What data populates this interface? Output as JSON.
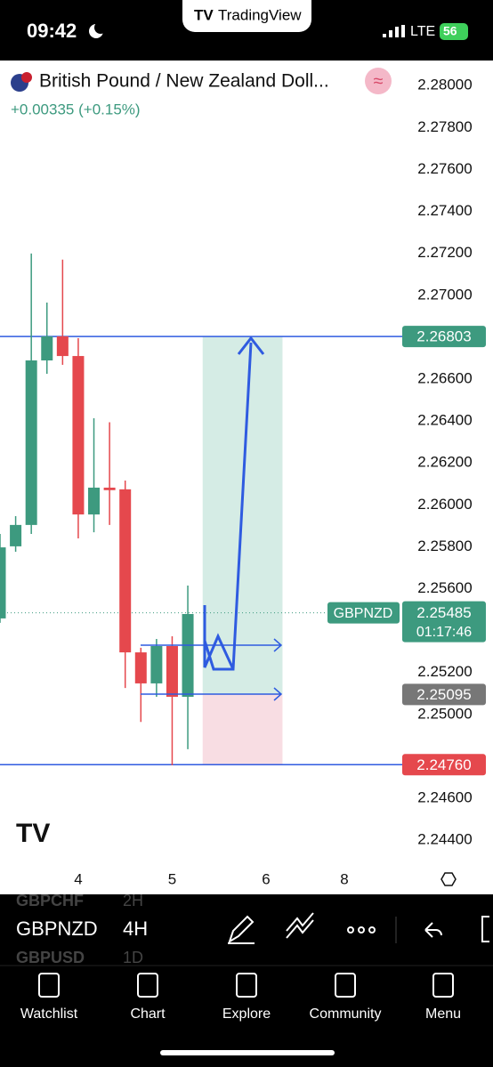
{
  "status_bar": {
    "time": "09:42",
    "app": "TradingView",
    "network": "LTE",
    "battery": "56"
  },
  "header": {
    "title": "British Pound / New Zealand Doll...",
    "change": "+0.00335 (+0.15%)"
  },
  "chart_data": {
    "type": "candlestick",
    "x": [
      0,
      1,
      2,
      3,
      4,
      5,
      6,
      7,
      8,
      9,
      10,
      11,
      12
    ],
    "open": [
      2.25458,
      2.25802,
      2.25904,
      2.26689,
      2.26804,
      2.2671,
      2.25954,
      2.26082,
      2.26074,
      2.25296,
      2.25148,
      2.25326,
      2.25084
    ],
    "high": [
      2.25861,
      2.25946,
      2.27199,
      2.26965,
      2.2717,
      2.26795,
      2.26413,
      2.26394,
      2.26116,
      2.25318,
      2.2536,
      2.25373,
      2.25615
    ],
    "low": [
      2.25437,
      2.25776,
      2.25861,
      2.26625,
      2.26668,
      2.2584,
      2.25869,
      2.25904,
      2.25126,
      2.24964,
      2.25084,
      2.24757,
      2.24834
    ],
    "close": [
      2.25797,
      2.25904,
      2.26689,
      2.26804,
      2.2671,
      2.25954,
      2.26082,
      2.2607,
      2.25296,
      2.25148,
      2.25326,
      2.25084,
      2.25479
    ],
    "up_color": "#3d9a7f",
    "down_color": "#e5484d",
    "xlim": [
      0,
      25.7
    ],
    "xticks": [
      {
        "value": 5,
        "label": "4"
      },
      {
        "value": 11,
        "label": "5"
      },
      {
        "value": 17,
        "label": "6"
      },
      {
        "value": 22,
        "label": "8"
      }
    ],
    "ylim": [
      2.2429,
      2.2812
    ],
    "yticks": [
      {
        "value": 2.28,
        "label": "2.28000"
      },
      {
        "value": 2.278,
        "label": "2.27800"
      },
      {
        "value": 2.276,
        "label": "2.27600"
      },
      {
        "value": 2.274,
        "label": "2.27400"
      },
      {
        "value": 2.272,
        "label": "2.27200"
      },
      {
        "value": 2.27,
        "label": "2.27000"
      },
      {
        "value": 2.266,
        "label": "2.26600"
      },
      {
        "value": 2.264,
        "label": "2.26400"
      },
      {
        "value": 2.262,
        "label": "2.26200"
      },
      {
        "value": 2.26,
        "label": "2.26000"
      },
      {
        "value": 2.258,
        "label": "2.25800"
      },
      {
        "value": 2.256,
        "label": "2.25600"
      },
      {
        "value": 2.252,
        "label": "2.25200"
      },
      {
        "value": 2.25,
        "label": "2.25000"
      },
      {
        "value": 2.246,
        "label": "2.24600"
      },
      {
        "value": 2.244,
        "label": "2.24400"
      }
    ],
    "hlines": [
      2.26803,
      2.2476
    ],
    "position": {
      "x_start": 12.95,
      "x_end": 18.05,
      "entry": 2.25095,
      "target": 2.26803,
      "stop": 2.2476
    },
    "price_tags": [
      {
        "value": 2.26803,
        "color": "#3d9a7f"
      },
      {
        "value": 2.25095,
        "color": "#777777"
      },
      {
        "value": 2.2476,
        "label": "2.24760",
        "color": "#e5484d"
      }
    ],
    "last_price": {
      "value": 2.25485,
      "countdown": "01:17:46",
      "symbol": "GBPNZD",
      "color": "#3d9a7f"
    }
  },
  "toolbar": {
    "prev_symbol": "GBPCHF",
    "symbol": "GBPNZD",
    "next_symbol": "GBPUSD",
    "prev_interval": "2H",
    "interval": "4H",
    "next_interval": "1D"
  },
  "nav": [
    "Watchlist",
    "Chart",
    "Explore",
    "Community",
    "Menu"
  ]
}
